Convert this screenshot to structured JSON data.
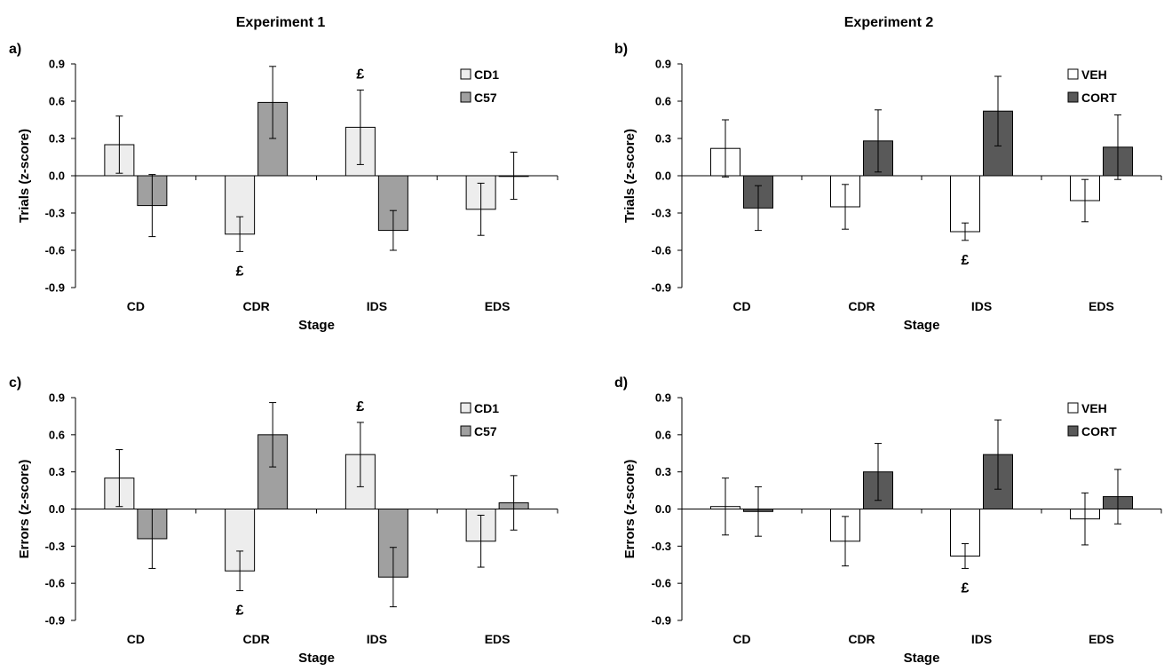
{
  "headers": {
    "left": "Experiment 1",
    "right": "Experiment 2"
  },
  "chart_data": [
    {
      "panel": "a)",
      "type": "bar",
      "categories": [
        "CD",
        "CDR",
        "IDS",
        "EDS"
      ],
      "xlabel": "Stage",
      "ylabel": "Trials (z-score)",
      "ylim": [
        -0.9,
        0.9
      ],
      "yticks": [
        "0.9",
        "0.6",
        "0.3",
        "0.0",
        "-0.3",
        "-0.6",
        "-0.9"
      ],
      "series": [
        {
          "name": "CD1",
          "color": "#ededed",
          "values": [
            0.25,
            -0.47,
            0.39,
            -0.27
          ],
          "errors": [
            0.23,
            0.14,
            0.3,
            0.21
          ]
        },
        {
          "name": "C57",
          "color": "#a0a0a0",
          "values": [
            -0.24,
            0.59,
            -0.44,
            0.0
          ],
          "errors": [
            0.25,
            0.29,
            0.16,
            0.19
          ]
        }
      ],
      "annotations": [
        {
          "category": "CDR",
          "series": 0,
          "text": "£"
        },
        {
          "category": "IDS",
          "series": 0,
          "text": "£"
        }
      ],
      "legend": "top-right"
    },
    {
      "panel": "b)",
      "type": "bar",
      "categories": [
        "CD",
        "CDR",
        "IDS",
        "EDS"
      ],
      "xlabel": "Stage",
      "ylabel": "Trials (z-score)",
      "ylim": [
        -0.9,
        0.9
      ],
      "yticks": [
        "0.9",
        "0.6",
        "0.3",
        "0.0",
        "-0.3",
        "-0.6",
        "-0.9"
      ],
      "series": [
        {
          "name": "VEH",
          "color": "#ffffff",
          "values": [
            0.22,
            -0.25,
            -0.45,
            -0.2
          ],
          "errors": [
            0.23,
            0.18,
            0.07,
            0.17
          ]
        },
        {
          "name": "CORT",
          "color": "#595959",
          "values": [
            -0.26,
            0.28,
            0.52,
            0.23
          ],
          "errors": [
            0.18,
            0.25,
            0.28,
            0.26
          ]
        }
      ],
      "annotations": [
        {
          "category": "IDS",
          "series": 0,
          "text": "£"
        }
      ],
      "legend": "top-right"
    },
    {
      "panel": "c)",
      "type": "bar",
      "categories": [
        "CD",
        "CDR",
        "IDS",
        "EDS"
      ],
      "xlabel": "Stage",
      "ylabel": "Errors (z-score)",
      "ylim": [
        -0.9,
        0.9
      ],
      "yticks": [
        "0.9",
        "0.6",
        "0.3",
        "0.0",
        "-0.3",
        "-0.6",
        "-0.9"
      ],
      "series": [
        {
          "name": "CD1",
          "color": "#ededed",
          "values": [
            0.25,
            -0.5,
            0.44,
            -0.26
          ],
          "errors": [
            0.23,
            0.16,
            0.26,
            0.21
          ]
        },
        {
          "name": "C57",
          "color": "#a0a0a0",
          "values": [
            -0.24,
            0.6,
            -0.55,
            0.05
          ],
          "errors": [
            0.24,
            0.26,
            0.24,
            0.22
          ]
        }
      ],
      "annotations": [
        {
          "category": "CDR",
          "series": 0,
          "text": "£"
        },
        {
          "category": "IDS",
          "series": 0,
          "text": "£"
        }
      ],
      "legend": "top-right"
    },
    {
      "panel": "d)",
      "type": "bar",
      "categories": [
        "CD",
        "CDR",
        "IDS",
        "EDS"
      ],
      "xlabel": "Stage",
      "ylabel": "Errors (z-score)",
      "ylim": [
        -0.9,
        0.9
      ],
      "yticks": [
        "0.9",
        "0.6",
        "0.3",
        "0.0",
        "-0.3",
        "-0.6",
        "-0.9"
      ],
      "series": [
        {
          "name": "VEH",
          "color": "#ffffff",
          "values": [
            0.02,
            -0.26,
            -0.38,
            -0.08
          ],
          "errors": [
            0.23,
            0.2,
            0.1,
            0.21
          ]
        },
        {
          "name": "CORT",
          "color": "#595959",
          "values": [
            -0.02,
            0.3,
            0.44,
            0.1
          ],
          "errors": [
            0.2,
            0.23,
            0.28,
            0.22
          ]
        }
      ],
      "annotations": [
        {
          "category": "IDS",
          "series": 0,
          "text": "£"
        }
      ],
      "legend": "top-right"
    }
  ]
}
